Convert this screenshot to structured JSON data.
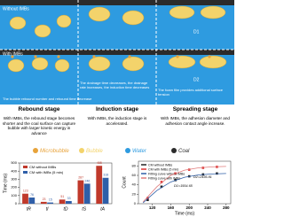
{
  "diagram": {
    "rows": [
      "Without IMBs",
      "With IMBs"
    ],
    "notes": [
      "The bubble rebound number and rebound time decrease",
      "The drainage time decreases, the drainage rate increases, the induction time decreases",
      "The foam film provides additional surface tension"
    ],
    "labels": [
      "D1",
      "D2"
    ]
  },
  "stages": [
    {
      "title": "Rebound stage",
      "text": "With IMBs, the rebound stage becomes shorter and the coal surface can capture bubble with larger kinetic energy in advance"
    },
    {
      "title": "Induction stage",
      "text": "With IMBs, the induction stage is accelerated."
    },
    {
      "title": "Spreading stage",
      "text": "With IMBs, the adhesion diameter and adhesion contact angle increase."
    }
  ],
  "legend": [
    {
      "label": "Microbubble",
      "color": "#e8a33a"
    },
    {
      "label": "Bubble",
      "color": "#f3d36b"
    },
    {
      "label": "Water",
      "color": "#2e9be0"
    },
    {
      "label": "Coal",
      "color": "#2b2b2b"
    }
  ],
  "chart_data": [
    {
      "type": "bar",
      "y_label": "Time (ms)",
      "categories": [
        "tR",
        "tI",
        "tD",
        "tS",
        "tA"
      ],
      "series": [
        {
          "name": "CM without IMBs",
          "color": "#c0392b",
          "values": [
            123,
            23,
            51,
            287,
            465
          ]
        },
        {
          "name": "CM with IMBs (5 min)",
          "color": "#2f5fa8",
          "values": [
            76,
            15,
            33,
            246,
            318
          ]
        }
      ],
      "ylim": [
        0,
        500
      ],
      "yticks": [
        0,
        100,
        200,
        300,
        400,
        500
      ]
    },
    {
      "type": "line",
      "x_label": "Time (ms)",
      "y_label": "Count",
      "series": [
        {
          "name": "CM without IMBs",
          "color": "#222222",
          "mode": "markers",
          "x": [
            110,
            140,
            170,
            200,
            230,
            260
          ],
          "values": [
            8,
            36,
            50,
            58,
            62,
            64
          ]
        },
        {
          "name": "CM with IMBs (5 min)",
          "color": "#d33",
          "mode": "markers",
          "x": [
            110,
            140,
            170,
            200,
            230,
            260
          ],
          "values": [
            12,
            46,
            64,
            72,
            76,
            78
          ]
        },
        {
          "name": "Fitting curve without IMBs",
          "color": "#2f5fa8",
          "mode": "line",
          "x": [
            100,
            130,
            160,
            190,
            220,
            250,
            280
          ],
          "values": [
            2,
            28,
            46,
            56,
            61,
            63,
            64
          ]
        },
        {
          "name": "Fitting curve with IMBs",
          "color": "#e07b7b",
          "mode": "line",
          "x": [
            100,
            130,
            160,
            190,
            220,
            250,
            280
          ],
          "values": [
            4,
            36,
            60,
            71,
            76,
            78,
            79
          ]
        }
      ],
      "annotations": [
        "D1=1554.65",
        "D2=2436.81"
      ],
      "xlim": [
        90,
        290
      ],
      "xticks": [
        120,
        160,
        200,
        240,
        280
      ],
      "ylim": [
        0,
        90
      ],
      "yticks": [
        0,
        20,
        40,
        60,
        80
      ]
    }
  ]
}
